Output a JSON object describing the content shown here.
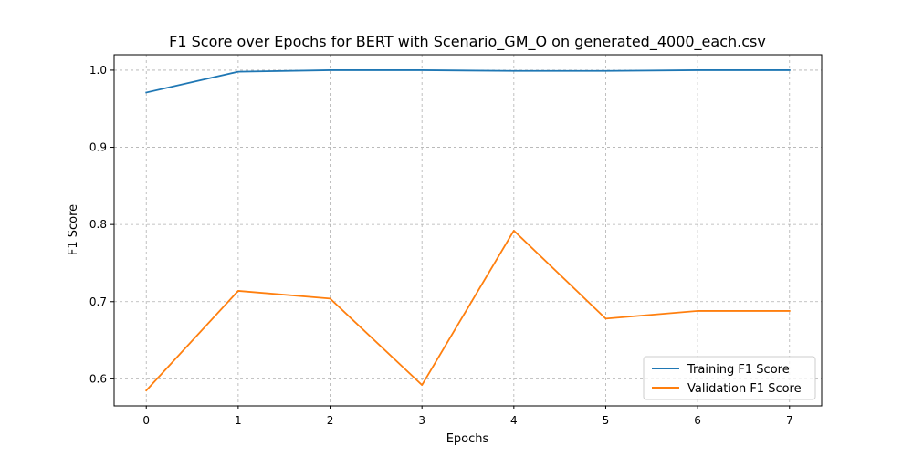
{
  "chart_data": {
    "type": "line",
    "title": "F1 Score over Epochs for BERT with Scenario_GM_O on generated_4000_each.csv",
    "xlabel": "Epochs",
    "ylabel": "F1 Score",
    "x": [
      0,
      1,
      2,
      3,
      4,
      5,
      6,
      7
    ],
    "xlim": [
      -0.35,
      7.35
    ],
    "ylim": [
      0.565,
      1.02
    ],
    "xticks": [
      "0",
      "1",
      "2",
      "3",
      "4",
      "5",
      "6",
      "7"
    ],
    "yticks": [
      "0.6",
      "0.7",
      "0.8",
      "0.9",
      "1.0"
    ],
    "grid": true,
    "legend_position": "lower-right",
    "series": [
      {
        "name": "Training F1 Score",
        "color": "#1f77b4",
        "values": [
          0.971,
          0.998,
          1.0,
          1.0,
          0.999,
          0.999,
          1.0,
          1.0
        ]
      },
      {
        "name": "Validation F1 Score",
        "color": "#ff7f0e",
        "values": [
          0.585,
          0.714,
          0.704,
          0.592,
          0.792,
          0.678,
          0.688,
          0.688
        ]
      }
    ]
  }
}
